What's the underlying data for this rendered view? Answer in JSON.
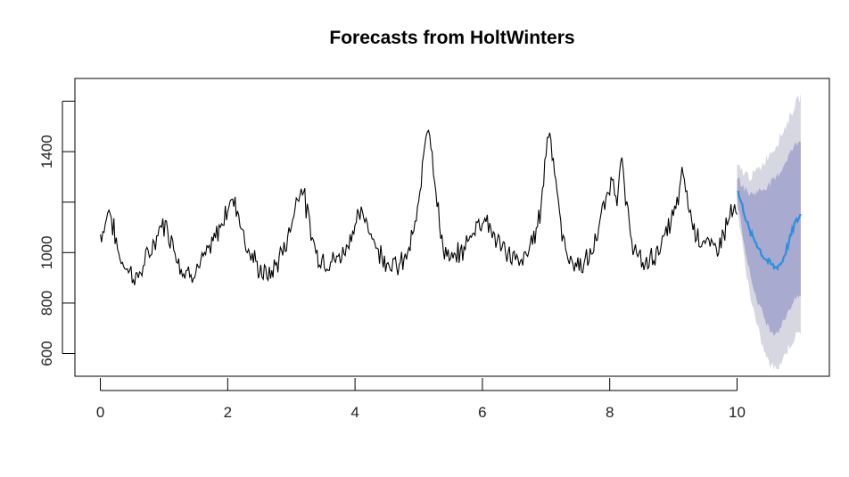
{
  "chart_data": {
    "type": "line",
    "title": "Forecasts from HoltWinters",
    "xlabel": "",
    "ylabel": "",
    "xlim": [
      -0.4,
      11.45
    ],
    "ylim": [
      510,
      1690
    ],
    "x_ticks": [
      0,
      2,
      4,
      6,
      8,
      10
    ],
    "x_tick_labels": [
      "0",
      "2",
      "4",
      "6",
      "8",
      "10"
    ],
    "y_ticks": [
      600,
      800,
      1000,
      1200,
      1400,
      1600
    ],
    "y_tick_labels": [
      "600",
      "800",
      "1000",
      "",
      "1400",
      ""
    ],
    "grid": false,
    "legend": "none",
    "colors": {
      "history": "#000000",
      "forecast": "#2b8fe0",
      "band_80": "#a9aacf",
      "band_95": "#d7d7e1"
    },
    "history_anchors": [
      [
        0.0,
        1070
      ],
      [
        0.07,
        1100
      ],
      [
        0.13,
        1185
      ],
      [
        0.2,
        1100
      ],
      [
        0.3,
        980
      ],
      [
        0.45,
        930
      ],
      [
        0.58,
        895
      ],
      [
        0.7,
        960
      ],
      [
        0.85,
        1040
      ],
      [
        0.97,
        1120
      ],
      [
        1.05,
        1095
      ],
      [
        1.15,
        1030
      ],
      [
        1.3,
        920
      ],
      [
        1.5,
        930
      ],
      [
        1.7,
        1000
      ],
      [
        1.88,
        1100
      ],
      [
        2.05,
        1210
      ],
      [
        2.15,
        1180
      ],
      [
        2.3,
        1020
      ],
      [
        2.5,
        930
      ],
      [
        2.65,
        905
      ],
      [
        2.8,
        970
      ],
      [
        2.95,
        1060
      ],
      [
        3.1,
        1230
      ],
      [
        3.17,
        1270
      ],
      [
        3.25,
        1150
      ],
      [
        3.4,
        990
      ],
      [
        3.6,
        960
      ],
      [
        3.8,
        990
      ],
      [
        3.95,
        1080
      ],
      [
        4.08,
        1150
      ],
      [
        4.2,
        1120
      ],
      [
        4.35,
        1010
      ],
      [
        4.55,
        960
      ],
      [
        4.7,
        940
      ],
      [
        4.85,
        1010
      ],
      [
        5.0,
        1170
      ],
      [
        5.1,
        1460
      ],
      [
        5.15,
        1530
      ],
      [
        5.22,
        1380
      ],
      [
        5.35,
        1050
      ],
      [
        5.5,
        960
      ],
      [
        5.7,
        1010
      ],
      [
        5.9,
        1110
      ],
      [
        6.05,
        1140
      ],
      [
        6.15,
        1080
      ],
      [
        6.3,
        1020
      ],
      [
        6.45,
        990
      ],
      [
        6.6,
        950
      ],
      [
        6.75,
        1020
      ],
      [
        6.9,
        1140
      ],
      [
        7.0,
        1400
      ],
      [
        7.05,
        1510
      ],
      [
        7.12,
        1360
      ],
      [
        7.25,
        1060
      ],
      [
        7.4,
        960
      ],
      [
        7.55,
        950
      ],
      [
        7.7,
        980
      ],
      [
        7.85,
        1120
      ],
      [
        8.0,
        1260
      ],
      [
        8.05,
        1300
      ],
      [
        8.12,
        1220
      ],
      [
        8.18,
        1380
      ],
      [
        8.25,
        1200
      ],
      [
        8.35,
        1050
      ],
      [
        8.45,
        970
      ],
      [
        8.55,
        950
      ],
      [
        8.7,
        990
      ],
      [
        8.85,
        1050
      ],
      [
        9.05,
        1180
      ],
      [
        9.15,
        1320
      ],
      [
        9.25,
        1170
      ],
      [
        9.35,
        1080
      ],
      [
        9.5,
        1040
      ],
      [
        9.65,
        1010
      ],
      [
        9.8,
        1080
      ],
      [
        9.9,
        1160
      ],
      [
        10.0,
        1150
      ]
    ],
    "forecast_anchors": [
      [
        10.0,
        1250
      ],
      [
        10.1,
        1170
      ],
      [
        10.2,
        1080
      ],
      [
        10.3,
        1040
      ],
      [
        10.4,
        990
      ],
      [
        10.5,
        960
      ],
      [
        10.6,
        940
      ],
      [
        10.7,
        960
      ],
      [
        10.8,
        1030
      ],
      [
        10.9,
        1110
      ],
      [
        11.0,
        1150
      ]
    ],
    "band_80": [
      [
        10.0,
        1210,
        1300
      ],
      [
        10.1,
        1060,
        1260
      ],
      [
        10.2,
        920,
        1230
      ],
      [
        10.3,
        820,
        1240
      ],
      [
        10.4,
        760,
        1250
      ],
      [
        10.5,
        700,
        1270
      ],
      [
        10.6,
        680,
        1290
      ],
      [
        10.7,
        710,
        1330
      ],
      [
        10.8,
        770,
        1380
      ],
      [
        10.9,
        810,
        1420
      ],
      [
        11.0,
        830,
        1450
      ]
    ],
    "band_95": [
      [
        10.0,
        1180,
        1340
      ],
      [
        10.1,
        1000,
        1320
      ],
      [
        10.2,
        840,
        1300
      ],
      [
        10.3,
        720,
        1320
      ],
      [
        10.4,
        630,
        1350
      ],
      [
        10.5,
        560,
        1390
      ],
      [
        10.6,
        540,
        1420
      ],
      [
        10.7,
        570,
        1470
      ],
      [
        10.8,
        620,
        1520
      ],
      [
        10.9,
        660,
        1580
      ],
      [
        11.0,
        690,
        1620
      ]
    ]
  }
}
